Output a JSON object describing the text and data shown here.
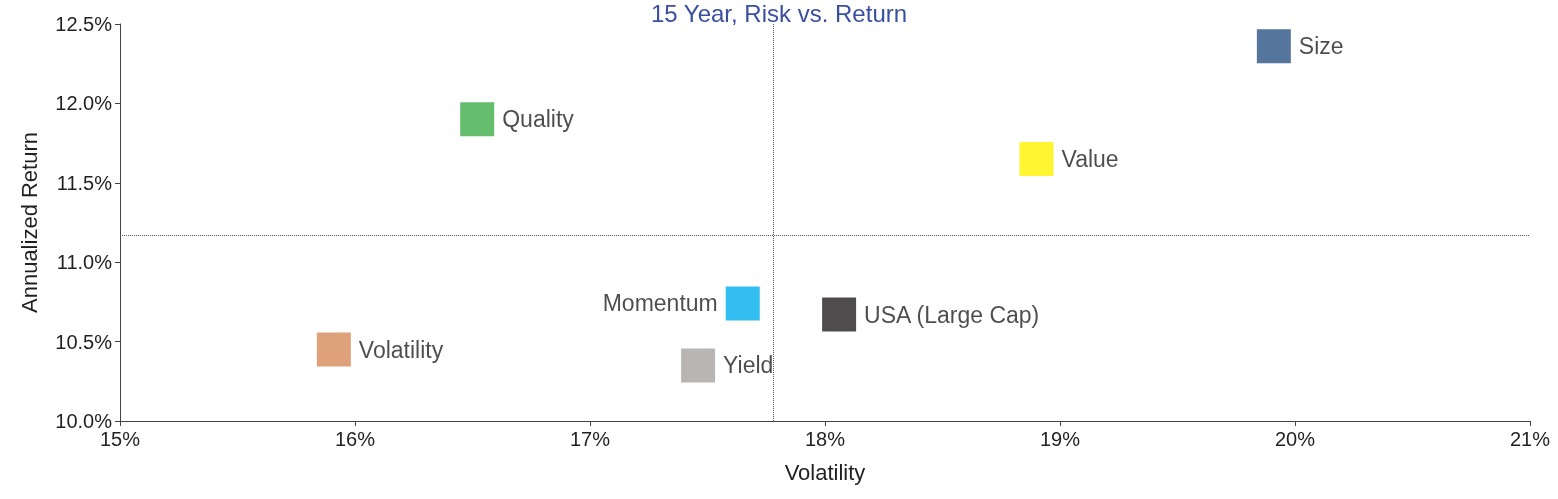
{
  "chart_data": {
    "type": "scatter",
    "title": "15 Year, Risk vs. Return",
    "xlabel": "Volatility",
    "ylabel": "Annualized Return",
    "xlim": [
      15,
      21
    ],
    "xticks": [
      {
        "value": 15,
        "label": "15%"
      },
      {
        "value": 16,
        "label": "16%"
      },
      {
        "value": 17,
        "label": "17%"
      },
      {
        "value": 18,
        "label": "18%"
      },
      {
        "value": 19,
        "label": "19%"
      },
      {
        "value": 20,
        "label": "20%"
      },
      {
        "value": 21,
        "label": "21%"
      }
    ],
    "ylim": [
      10,
      12.5
    ],
    "yticks": [
      {
        "value": 10,
        "label": "10.0%"
      },
      {
        "value": 10.5,
        "label": "10.5%"
      },
      {
        "value": 11,
        "label": "11.0%"
      },
      {
        "value": 11.5,
        "label": "11.5%"
      },
      {
        "value": 12,
        "label": "12.0%"
      },
      {
        "value": 12.5,
        "label": "12.5%"
      }
    ],
    "marker": "square",
    "grid": false,
    "legend": false,
    "series": [
      {
        "name": "Size",
        "color": "#2a5384",
        "x": [
          19.91
        ],
        "values": [
          12.36
        ]
      },
      {
        "name": "Quality",
        "color": "#3fae49",
        "x": [
          16.52
        ],
        "values": [
          11.9
        ]
      },
      {
        "name": "Value",
        "color": "#fff200",
        "x": [
          18.9
        ],
        "values": [
          11.65
        ]
      },
      {
        "name": "Momentum",
        "color": "#00aeef",
        "x": [
          17.65
        ],
        "values": [
          10.74
        ]
      },
      {
        "name": "USA (Large Cap)",
        "color": "#231f20",
        "x": [
          18.06
        ],
        "values": [
          10.67
        ]
      },
      {
        "name": "Volatility",
        "color": "#d68a58",
        "x": [
          15.91
        ],
        "values": [
          10.45
        ]
      },
      {
        "name": "Yield",
        "color": "#a7a2a2",
        "x": [
          17.46
        ],
        "values": [
          10.35
        ]
      }
    ],
    "ref_lines": [
      {
        "axis": "x",
        "value": 17.78,
        "line_style": "dotted",
        "color": "#555555"
      },
      {
        "axis": "y",
        "value": 11.17,
        "line_style": "dotted",
        "color": "#555555"
      }
    ]
  }
}
